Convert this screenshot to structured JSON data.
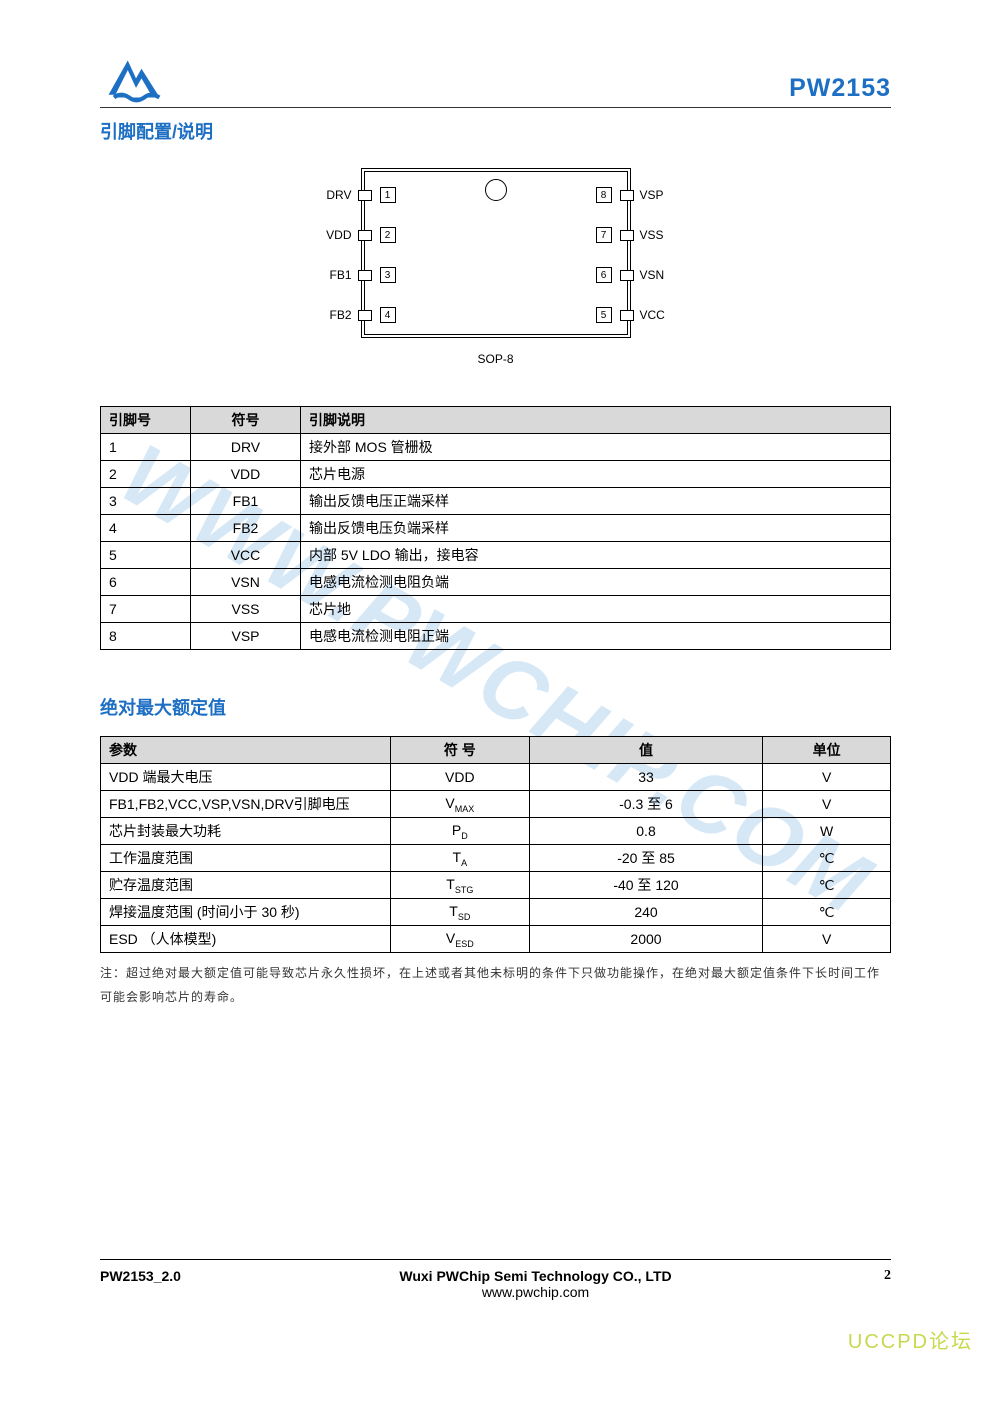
{
  "header": {
    "part_no": "PW2153",
    "logo_fill": "#1d6fc4"
  },
  "section1_title": "引脚配置/说明",
  "package_label": "SOP-8",
  "pins_diagram": {
    "left": [
      {
        "n": "1",
        "lbl": "DRV"
      },
      {
        "n": "2",
        "lbl": "VDD"
      },
      {
        "n": "3",
        "lbl": "FB1"
      },
      {
        "n": "4",
        "lbl": "FB2"
      }
    ],
    "right": [
      {
        "n": "8",
        "lbl": "VSP"
      },
      {
        "n": "7",
        "lbl": "VSS"
      },
      {
        "n": "6",
        "lbl": "VSN"
      },
      {
        "n": "5",
        "lbl": "VCC"
      }
    ]
  },
  "pin_table": {
    "headers": [
      "引脚号",
      "符号",
      "引脚说明"
    ],
    "rows": [
      [
        "1",
        "DRV",
        "接外部 MOS 管栅极"
      ],
      [
        "2",
        "VDD",
        "芯片电源"
      ],
      [
        "3",
        "FB1",
        "输出反馈电压正端采样"
      ],
      [
        "4",
        "FB2",
        "输出反馈电压负端采样"
      ],
      [
        "5",
        "VCC",
        "内部 5V LDO 输出，接电容"
      ],
      [
        "6",
        "VSN",
        "电感电流检测电阻负端"
      ],
      [
        "7",
        "VSS",
        "芯片地"
      ],
      [
        "8",
        "VSP",
        "电感电流检测电阻正端"
      ]
    ]
  },
  "section2_title": "绝对最大额定值",
  "ratings": {
    "headers": [
      "参数",
      "符 号",
      "值",
      "单位"
    ],
    "rows": [
      {
        "p": "VDD 端最大电压",
        "s": "VDD",
        "ssub": "",
        "v": "33",
        "u": "V"
      },
      {
        "p": "FB1,FB2,VCC,VSP,VSN,DRV引脚电压",
        "s": "V",
        "ssub": "MAX",
        "v": "-0.3 至 6",
        "u": "V"
      },
      {
        "p": "芯片封装最大功耗",
        "s": "P",
        "ssub": "D",
        "v": "0.8",
        "u": "W"
      },
      {
        "p": "工作温度范围",
        "s": "T",
        "ssub": "A",
        "v": "-20 至 85",
        "u": "℃"
      },
      {
        "p": "贮存温度范围",
        "s": "T",
        "ssub": "STG",
        "v": "-40 至 120",
        "u": "℃"
      },
      {
        "p": "焊接温度范围 (时间小于 30 秒)",
        "s": "T",
        "ssub": "SD",
        "v": "240",
        "u": "℃"
      },
      {
        "p": "ESD （人体模型)",
        "s": "V",
        "ssub": "ESD",
        "v": "2000",
        "u": "V"
      }
    ]
  },
  "note": "注：超过绝对最大额定值可能导致芯片永久性损坏，在上述或者其他未标明的条件下只做功能操作，在绝对最大额定值条件下长时间工作可能会影响芯片的寿命。",
  "watermark": "WWW.PWCHIP.COM",
  "footer": {
    "left": "PW2153_2.0",
    "center1": "Wuxi PWChip Semi Technology CO., LTD",
    "center2": "www.pwchip.com",
    "page": "2"
  },
  "forum_tag": "UCCPD论坛"
}
